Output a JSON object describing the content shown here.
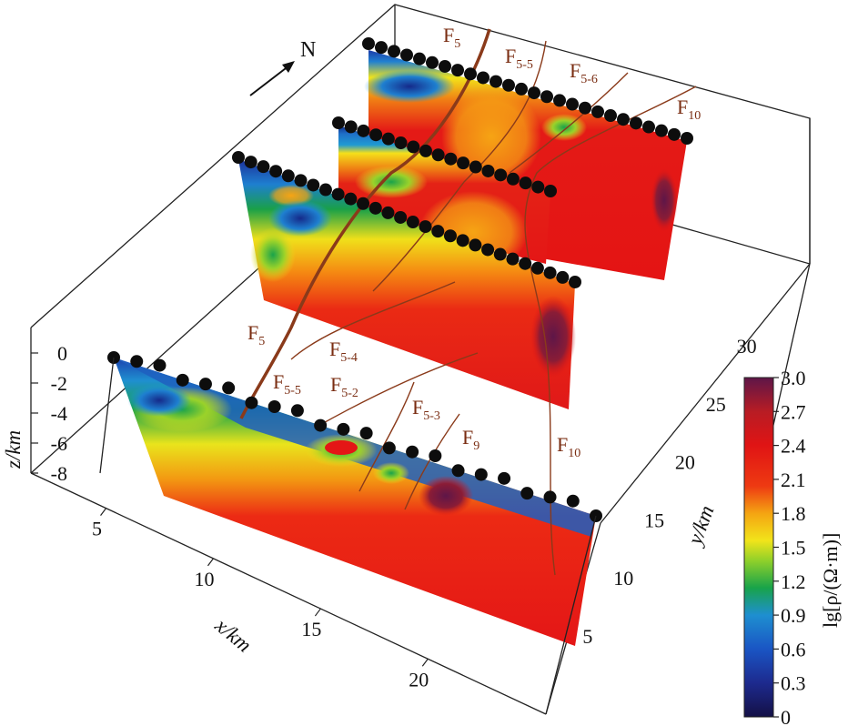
{
  "north_label": "N",
  "chart_data": {
    "type": "heatmap",
    "title": "",
    "description_of_sections": "four parallel resistivity cross-sections in a 3D box",
    "xlabel": "x/km",
    "ylabel": "y/km",
    "zlabel": "z/km",
    "x_ticks": [
      "5",
      "10",
      "15",
      "20"
    ],
    "y_ticks": [
      "5",
      "10",
      "15",
      "20",
      "25",
      "30"
    ],
    "z_ticks": [
      "0",
      "-2",
      "-4",
      "-6",
      "-8"
    ],
    "colorbar": {
      "label": "lg[ρ/(Ω·m)]",
      "min": 0,
      "max": 3.0,
      "ticks": [
        "3.0",
        "2.7",
        "2.4",
        "2.1",
        "1.8",
        "1.5",
        "1.2",
        "0.9",
        "0.6",
        "0.3",
        "0"
      ],
      "colors": [
        "#1a1050",
        "#1f2f9a",
        "#1a5fc8",
        "#1f9ad2",
        "#1aa040",
        "#9ad22a",
        "#f2e01a",
        "#f4a010",
        "#ee3a12",
        "#e01414",
        "#c41a1a",
        "#7a1a40",
        "#5a1a4a"
      ]
    },
    "faults": [
      {
        "name": "F",
        "sub": "5"
      },
      {
        "name": "F",
        "sub": "5-5"
      },
      {
        "name": "F",
        "sub": "5-6"
      },
      {
        "name": "F",
        "sub": "10"
      },
      {
        "name": "F",
        "sub": "5"
      },
      {
        "name": "F",
        "sub": "5-4"
      },
      {
        "name": "F",
        "sub": "5-5"
      },
      {
        "name": "F",
        "sub": "5-2"
      },
      {
        "name": "F",
        "sub": "5-3"
      },
      {
        "name": "F",
        "sub": "9"
      },
      {
        "name": "F",
        "sub": "10"
      }
    ]
  }
}
